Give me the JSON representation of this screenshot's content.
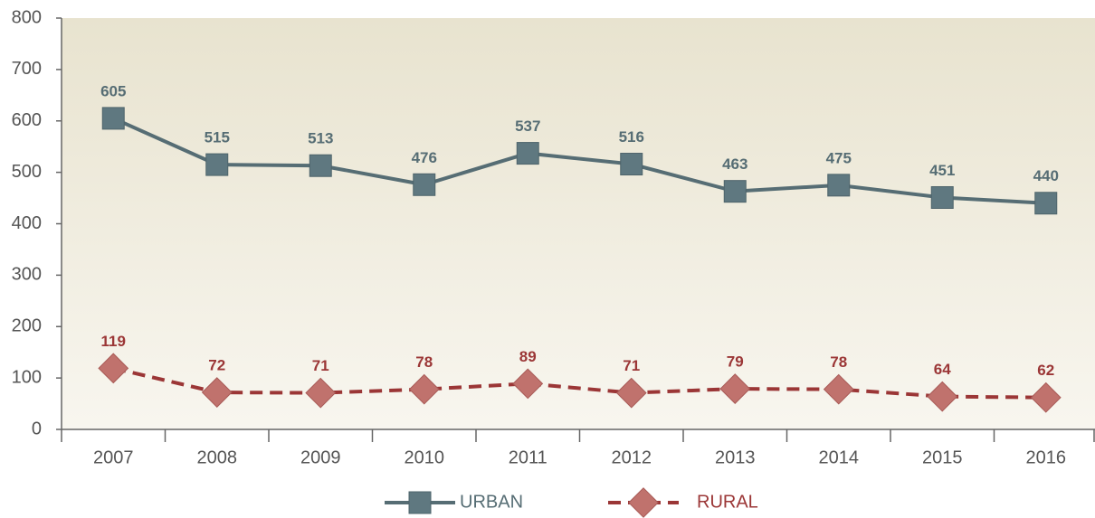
{
  "chart_data": {
    "type": "line",
    "categories": [
      "2007",
      "2008",
      "2009",
      "2010",
      "2011",
      "2012",
      "2013",
      "2014",
      "2015",
      "2016"
    ],
    "series": [
      {
        "name": "URBAN",
        "color": "#566d74",
        "values": [
          605,
          515,
          513,
          476,
          537,
          516,
          463,
          475,
          451,
          440
        ]
      },
      {
        "name": "RURAL",
        "color": "#9b3636",
        "values": [
          119,
          72,
          71,
          78,
          89,
          71,
          79,
          78,
          64,
          62
        ]
      }
    ],
    "ylim": [
      0,
      800
    ],
    "yticks": [
      0,
      100,
      200,
      300,
      400,
      500,
      600,
      700,
      800
    ],
    "legend": "bottom"
  }
}
